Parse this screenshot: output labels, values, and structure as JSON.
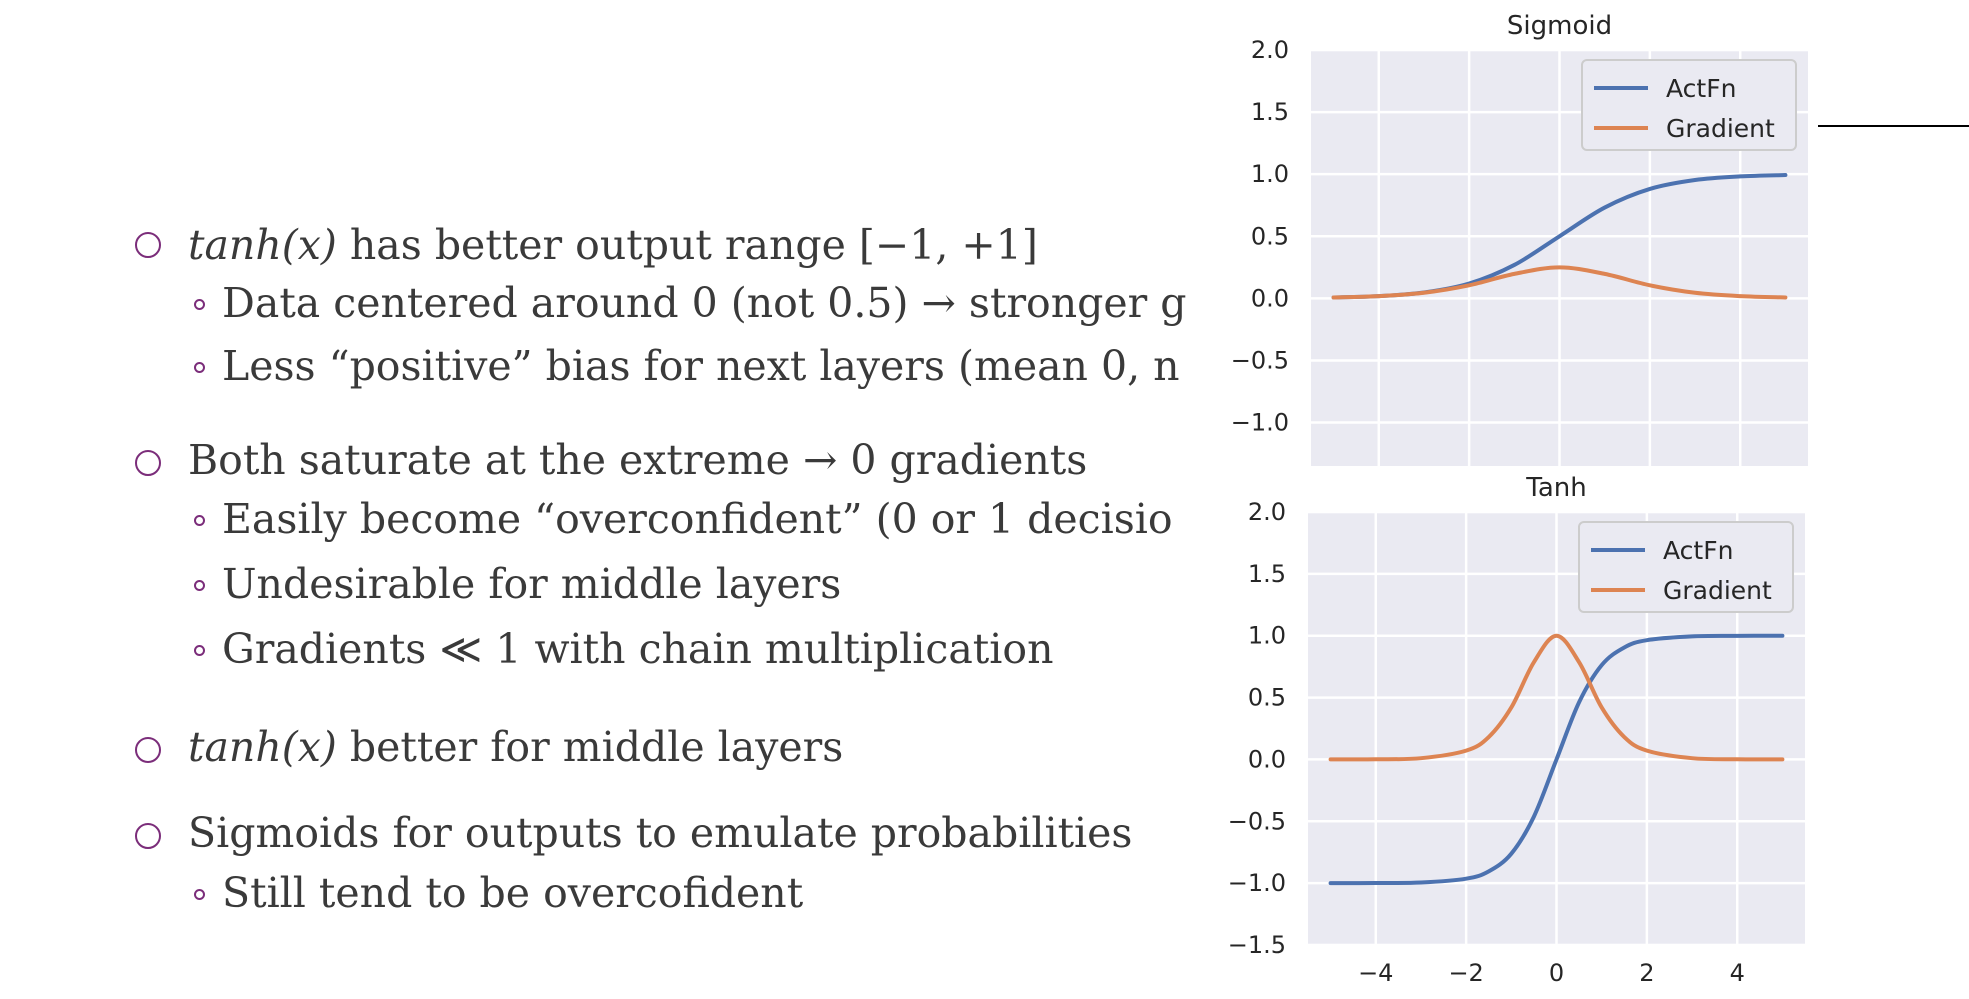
{
  "bullets": {
    "b1_math": "tanh(x)",
    "b1_text": " has better output range [−1, +1]",
    "b1_sub1": "Data centered around 0 (not 0.5) → stronger g",
    "b1_sub2": "Less “positive” bias for next layers (mean 0, n",
    "b2_text": "Both saturate at the extreme → 0 gradients",
    "b2_sub1": "Easily become “overconfident” (0 or 1 decisio",
    "b2_sub2": "Undesirable for middle layers",
    "b2_sub3": "Gradients ≪ 1 with chain multiplication",
    "b3_math": "tanh(x)",
    "b3_text": " better for middle layers",
    "b4_text": "Sigmoids for outputs to emulate probabilities",
    "b4_sub1": "Still tend to be overcofident"
  },
  "colors": {
    "bullet_marker": "#7b2d7a",
    "text": "#3a3a3a",
    "plot_bg": "#eaeaf2",
    "actfn": "#4c72b0",
    "gradient": "#dd8452"
  },
  "chart_data": [
    {
      "type": "line",
      "title": "Sigmoid",
      "xlim": [
        -5.5,
        5.5
      ],
      "ylim": [
        -1.35,
        2.0
      ],
      "yticks": [
        2.0,
        1.5,
        1.0,
        0.5,
        0.0,
        -0.5,
        -1.0
      ],
      "ytick_labels": [
        "2.0",
        "1.5",
        "1.0",
        "0.5",
        "0.0",
        "−0.5",
        "−1.0"
      ],
      "xticks": [
        -4,
        -2,
        0,
        2,
        4
      ],
      "show_xtick_labels": false,
      "legend": [
        "ActFn",
        "Gradient"
      ],
      "legend_position": "top-right",
      "grid": true,
      "x": [
        -5,
        -4,
        -3,
        -2,
        -1,
        0,
        1,
        2,
        3,
        4,
        5
      ],
      "series": [
        {
          "name": "ActFn",
          "values": [
            0.007,
            0.018,
            0.047,
            0.119,
            0.269,
            0.5,
            0.731,
            0.881,
            0.953,
            0.982,
            0.993
          ]
        },
        {
          "name": "Gradient",
          "values": [
            0.007,
            0.018,
            0.045,
            0.105,
            0.197,
            0.25,
            0.197,
            0.105,
            0.045,
            0.018,
            0.007
          ]
        }
      ]
    },
    {
      "type": "line",
      "title": "Tanh",
      "xlim": [
        -5.5,
        5.5
      ],
      "ylim": [
        -1.5,
        2.0
      ],
      "yticks": [
        2.0,
        1.5,
        1.0,
        0.5,
        0.0,
        -0.5,
        -1.0,
        -1.5
      ],
      "ytick_labels": [
        "2.0",
        "1.5",
        "1.0",
        "0.5",
        "0.0",
        "−0.5",
        "−1.0",
        "−1.5"
      ],
      "xticks": [
        -4,
        -2,
        0,
        2,
        4
      ],
      "xtick_labels": [
        "−4",
        "−2",
        "0",
        "2",
        "4"
      ],
      "show_xtick_labels": true,
      "legend": [
        "ActFn",
        "Gradient"
      ],
      "legend_position": "top-right",
      "grid": true,
      "x": [
        -5,
        -4,
        -3,
        -2,
        -1.5,
        -1,
        -0.5,
        0,
        0.5,
        1,
        1.5,
        2,
        3,
        4,
        5
      ],
      "series": [
        {
          "name": "ActFn",
          "values": [
            -1.0,
            -0.999,
            -0.995,
            -0.964,
            -0.905,
            -0.762,
            -0.462,
            0,
            0.462,
            0.762,
            0.905,
            0.964,
            0.995,
            0.999,
            1.0
          ]
        },
        {
          "name": "Gradient",
          "values": [
            0.0,
            0.001,
            0.01,
            0.071,
            0.181,
            0.42,
            0.786,
            1.0,
            0.786,
            0.42,
            0.181,
            0.071,
            0.01,
            0.001,
            0.0
          ]
        }
      ]
    }
  ]
}
